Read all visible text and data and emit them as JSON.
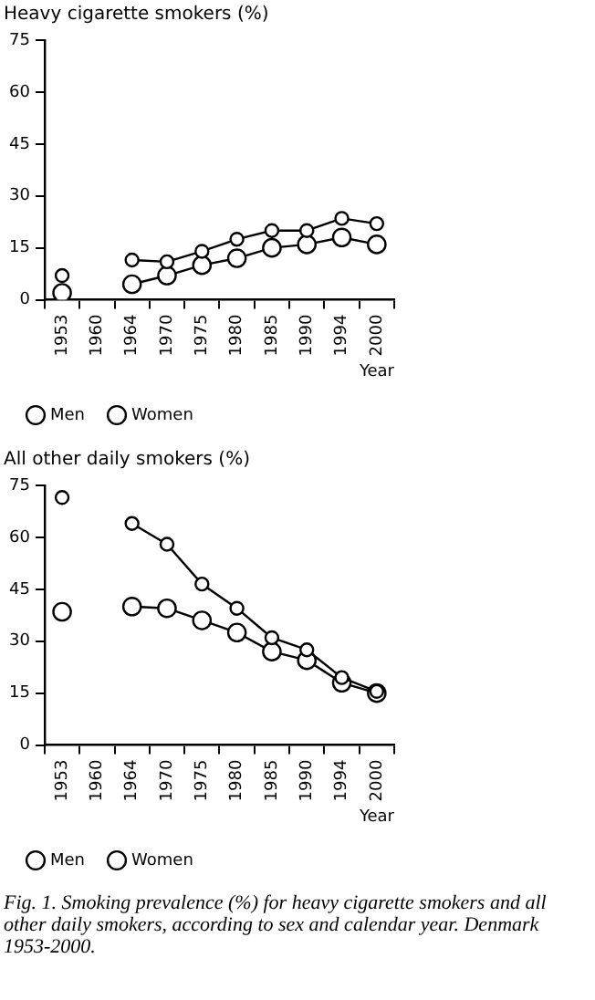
{
  "chart_data": [
    {
      "type": "line",
      "title": "Heavy cigarette smokers (%)",
      "xlabel": "Year",
      "categories": [
        "1953",
        "1960",
        "1964",
        "1970",
        "1975",
        "1980",
        "1985",
        "1990",
        "1994",
        "2000"
      ],
      "series": [
        {
          "name": "Men",
          "color": "#000000",
          "values": [
            7,
            null,
            11.5,
            11,
            14,
            17.5,
            20,
            20,
            23.5,
            22
          ]
        },
        {
          "name": "Women",
          "color": "#000000",
          "values": [
            2,
            null,
            4.5,
            7,
            10,
            12,
            15,
            16,
            18,
            16
          ]
        }
      ],
      "ylim": [
        0,
        75
      ],
      "yticks": [
        0,
        15,
        30,
        45,
        60,
        75
      ],
      "grid": false,
      "legend": "bottom",
      "marker": "circle",
      "line_style": "solid"
    },
    {
      "type": "line",
      "title": "All other daily smokers (%)",
      "xlabel": "Year",
      "categories": [
        "1953",
        "1960",
        "1964",
        "1970",
        "1975",
        "1980",
        "1985",
        "1990",
        "1994",
        "2000"
      ],
      "series": [
        {
          "name": "Men",
          "color": "#000000",
          "values": [
            71.5,
            null,
            64,
            58,
            46.5,
            39.5,
            31,
            27.5,
            19.5,
            15.5
          ]
        },
        {
          "name": "Women",
          "color": "#000000",
          "values": [
            38.5,
            null,
            40,
            39.5,
            36,
            32.5,
            27,
            24.5,
            18,
            15
          ]
        }
      ],
      "ylim": [
        0,
        75
      ],
      "yticks": [
        0,
        15,
        30,
        45,
        60,
        75
      ],
      "grid": false,
      "legend": "bottom",
      "marker": "circle",
      "line_style": "solid",
      "annotations": [
        "Fig. 1. Smoking prevalence (%) for heavy cigarette smokers and all other daily smokers, according to sex and calendar year. Denmark 1953-2000."
      ]
    }
  ]
}
